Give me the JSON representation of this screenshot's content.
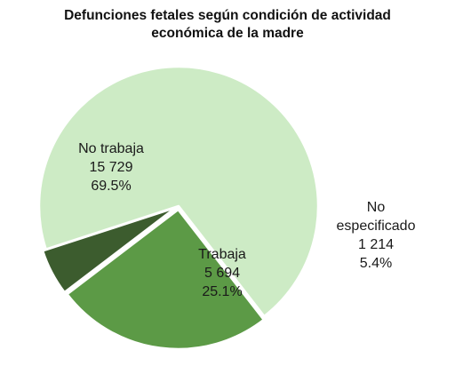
{
  "chart_data": {
    "type": "pie",
    "title": [
      "Defunciones fetales según condición de actividad",
      "económica de la madre"
    ],
    "slices": [
      {
        "label": "No trabaja",
        "value": 15729,
        "value_label": "15 729",
        "percent_label": "69.5%",
        "color": "#cdebc5"
      },
      {
        "label": "Trabaja",
        "value": 5694,
        "value_label": "5 694",
        "percent_label": "25.1%",
        "color": "#5c9a46"
      },
      {
        "label": "No especificado",
        "label_lines": [
          "No",
          "especificado"
        ],
        "value": 1214,
        "value_label": "1 214",
        "percent_label": "5.4%",
        "color": "#3c5c2e"
      }
    ],
    "legend": "none",
    "label_placement": "inside, except the smallest slice labeled outside to the right"
  }
}
